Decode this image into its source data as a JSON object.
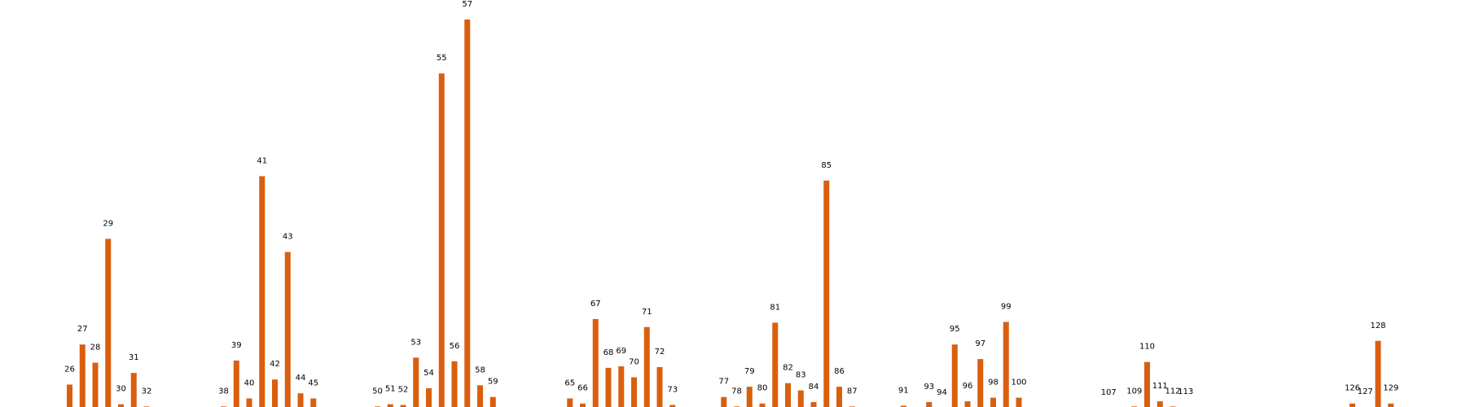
{
  "chart_data": {
    "type": "bar",
    "color": "#d95f0e",
    "grid": false,
    "axes_visible": false,
    "ylim": [
      0,
      580
    ],
    "categories": [
      "26",
      "27",
      "28",
      "29",
      "30",
      "31",
      "32",
      "38",
      "39",
      "40",
      "41",
      "42",
      "43",
      "44",
      "45",
      "50",
      "51",
      "52",
      "53",
      "54",
      "55",
      "56",
      "57",
      "58",
      "59",
      "65",
      "66",
      "67",
      "68",
      "69",
      "70",
      "71",
      "72",
      "73",
      "77",
      "78",
      "79",
      "80",
      "81",
      "82",
      "83",
      "84",
      "85",
      "86",
      "87",
      "91",
      "93",
      "94",
      "95",
      "96",
      "97",
      "98",
      "99",
      "100",
      "107",
      "109",
      "110",
      "111",
      "112",
      "113",
      "126",
      "127",
      "128",
      "129"
    ],
    "x": [
      26,
      27,
      28,
      29,
      30,
      31,
      32,
      38,
      39,
      40,
      41,
      42,
      43,
      44,
      45,
      50,
      51,
      52,
      53,
      54,
      55,
      56,
      57,
      58,
      59,
      65,
      66,
      67,
      68,
      69,
      70,
      71,
      72,
      73,
      77,
      78,
      79,
      80,
      81,
      82,
      83,
      84,
      85,
      86,
      87,
      91,
      93,
      94,
      95,
      96,
      97,
      98,
      99,
      100,
      107,
      109,
      110,
      111,
      112,
      113,
      126,
      127,
      128,
      129
    ],
    "values": [
      33,
      88,
      63,
      233,
      6,
      49,
      3,
      3,
      66,
      14,
      319,
      40,
      215,
      21,
      14,
      3,
      6,
      5,
      70,
      28,
      460,
      65,
      534,
      32,
      16,
      14,
      7,
      123,
      56,
      58,
      43,
      112,
      57,
      5,
      16,
      3,
      30,
      7,
      118,
      35,
      25,
      9,
      313,
      30,
      3,
      4,
      9,
      1,
      88,
      10,
      68,
      15,
      119,
      15,
      1,
      3,
      64,
      10,
      3,
      2,
      7,
      2,
      93,
      7
    ]
  }
}
